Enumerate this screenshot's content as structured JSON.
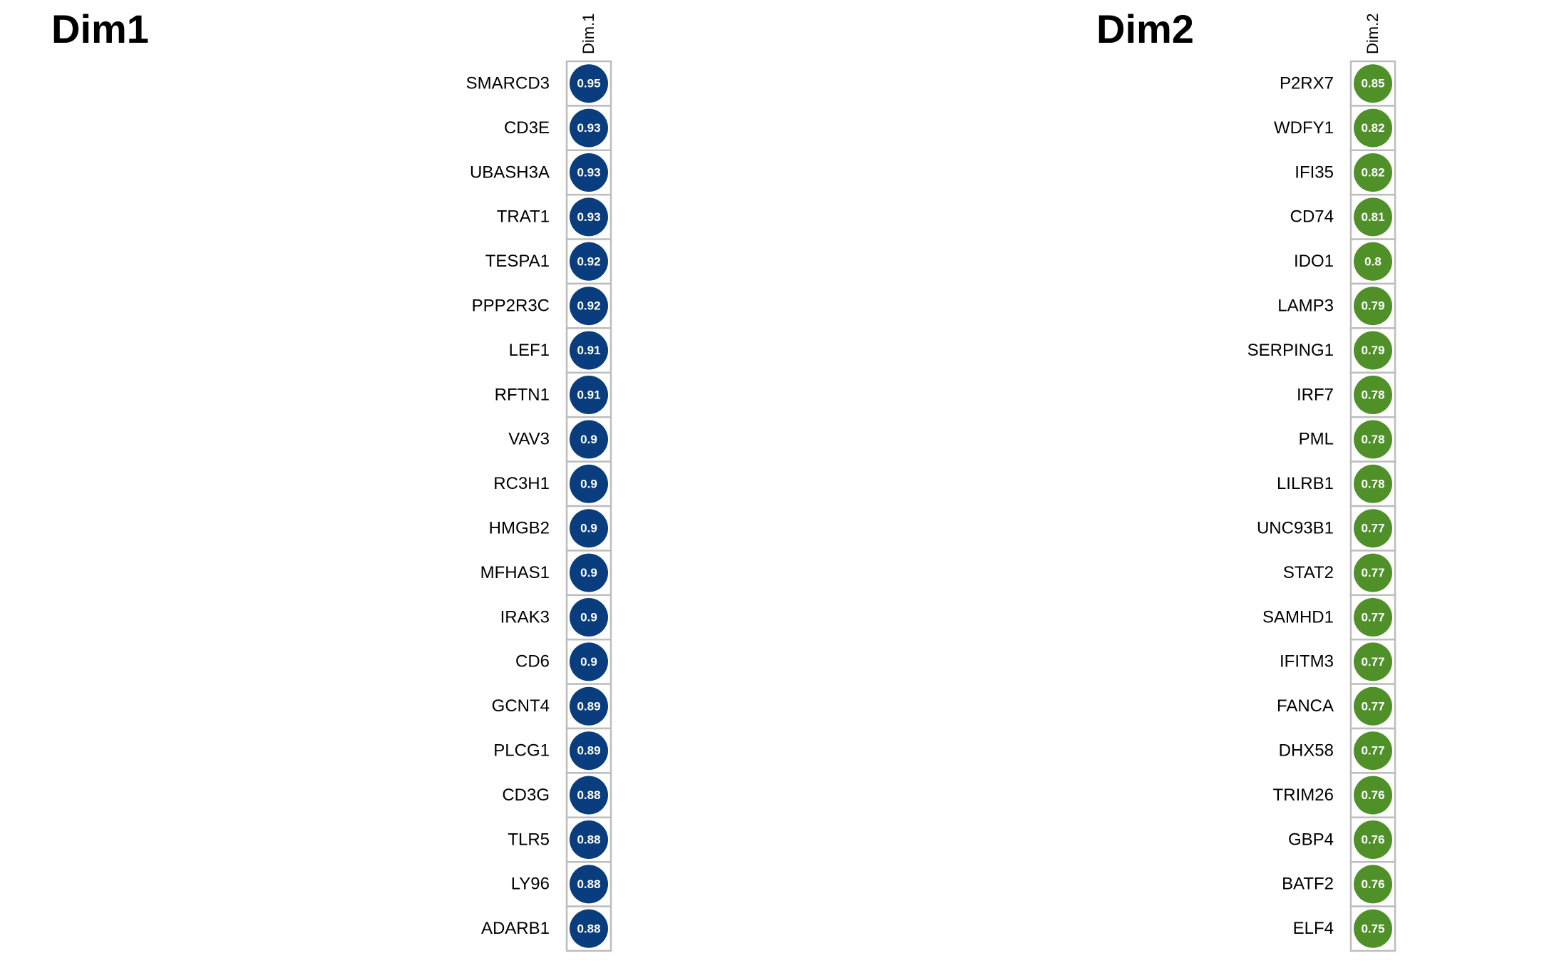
{
  "chart_data": [
    {
      "type": "heatmap",
      "title": "Dim1",
      "column_label": "Dim.1",
      "color": "#0a3d7d",
      "rows": [
        "SMARCD3",
        "CD3E",
        "UBASH3A",
        "TRAT1",
        "TESPA1",
        "PPP2R3C",
        "LEF1",
        "RFTN1",
        "VAV3",
        "RC3H1",
        "HMGB2",
        "MFHAS1",
        "IRAK3",
        "CD6",
        "GCNT4",
        "PLCG1",
        "CD3G",
        "TLR5",
        "LY96",
        "ADARB1"
      ],
      "values": [
        "0.95",
        "0.93",
        "0.93",
        "0.93",
        "0.92",
        "0.92",
        "0.91",
        "0.91",
        "0.9",
        "0.9",
        "0.9",
        "0.9",
        "0.9",
        "0.9",
        "0.89",
        "0.89",
        "0.88",
        "0.88",
        "0.88",
        "0.88"
      ]
    },
    {
      "type": "heatmap",
      "title": "Dim2",
      "column_label": "Dim.2",
      "color": "#4f9128",
      "rows": [
        "P2RX7",
        "WDFY1",
        "IFI35",
        "CD74",
        "IDO1",
        "LAMP3",
        "SERPING1",
        "IRF7",
        "PML",
        "LILRB1",
        "UNC93B1",
        "STAT2",
        "SAMHD1",
        "IFITM3",
        "FANCA",
        "DHX58",
        "TRIM26",
        "GBP4",
        "BATF2",
        "ELF4"
      ],
      "values": [
        "0.85",
        "0.82",
        "0.82",
        "0.81",
        "0.8",
        "0.79",
        "0.79",
        "0.78",
        "0.78",
        "0.78",
        "0.77",
        "0.77",
        "0.77",
        "0.77",
        "0.77",
        "0.77",
        "0.76",
        "0.76",
        "0.76",
        "0.75"
      ]
    }
  ]
}
